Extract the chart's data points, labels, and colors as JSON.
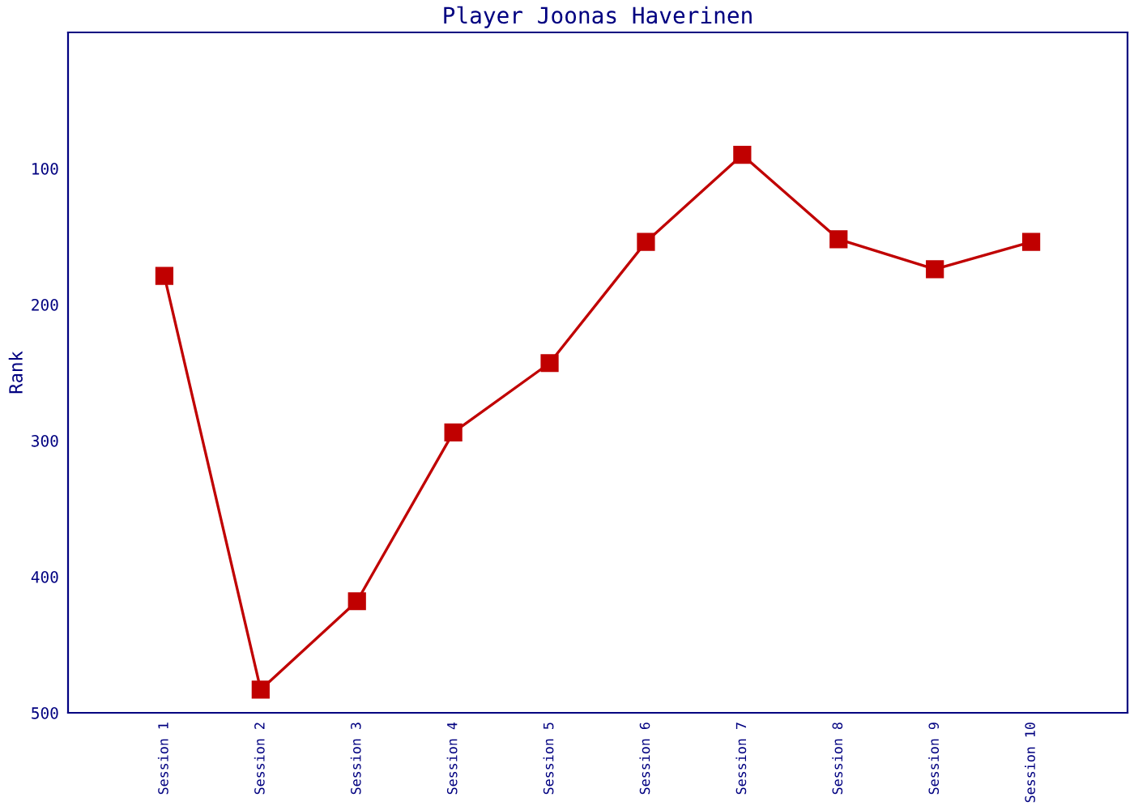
{
  "chart_data": {
    "type": "line",
    "title": "Player Joonas Haverinen",
    "ylabel": "Rank",
    "categories": [
      "Session 1",
      "Session 2",
      "Session 3",
      "Session 4",
      "Session 5",
      "Session 6",
      "Session 7",
      "Session 8",
      "Session 9",
      "Session 10"
    ],
    "series": [
      {
        "color": "#c00000",
        "values": [
          179,
          483,
          418,
          294,
          243,
          154,
          90,
          152,
          174,
          154
        ]
      }
    ],
    "ylim": [
      500,
      0
    ],
    "yticks": [
      100,
      200,
      300,
      400,
      500
    ],
    "grid": false,
    "legend": false,
    "marker": "square",
    "line_style": "solid"
  }
}
